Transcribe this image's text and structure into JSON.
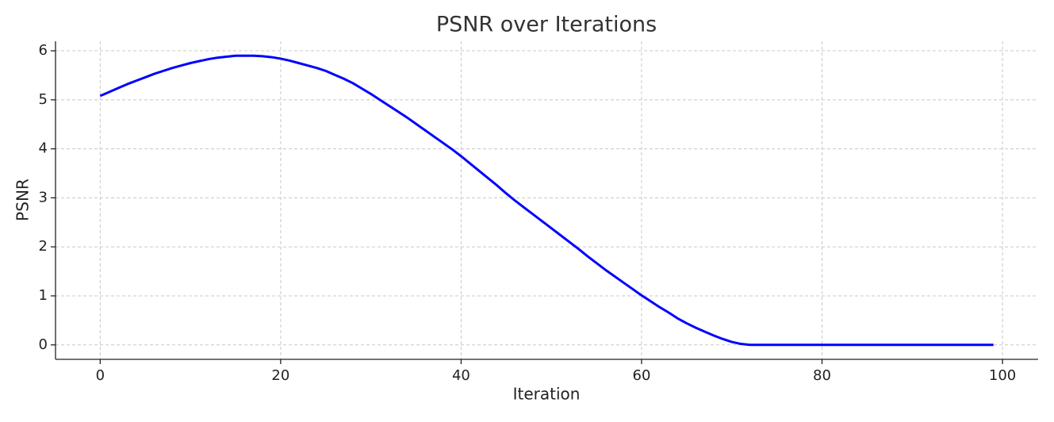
{
  "chart_data": {
    "type": "line",
    "title": "PSNR over Iterations",
    "x_label": "Iteration",
    "y_label": "PSNR",
    "x": [
      0,
      1,
      2,
      3,
      4,
      5,
      6,
      7,
      8,
      9,
      10,
      11,
      12,
      13,
      14,
      15,
      16,
      17,
      18,
      19,
      20,
      21,
      22,
      23,
      24,
      25,
      26,
      27,
      28,
      29,
      30,
      31,
      32,
      33,
      34,
      35,
      36,
      37,
      38,
      39,
      40,
      41,
      42,
      43,
      44,
      45,
      46,
      47,
      48,
      49,
      50,
      51,
      52,
      53,
      54,
      55,
      56,
      57,
      58,
      59,
      60,
      61,
      62,
      63,
      64,
      65,
      66,
      67,
      68,
      69,
      70,
      71,
      72,
      73,
      74,
      75,
      76,
      77,
      78,
      79,
      80,
      81,
      82,
      83,
      84,
      85,
      86,
      87,
      88,
      89,
      90,
      91,
      92,
      93,
      94,
      95,
      96,
      97,
      98,
      99
    ],
    "series": [
      {
        "name": "PSNR",
        "color": "#0000ff",
        "values": [
          5.08,
          5.16,
          5.24,
          5.32,
          5.39,
          5.46,
          5.53,
          5.59,
          5.65,
          5.7,
          5.75,
          5.79,
          5.83,
          5.86,
          5.88,
          5.9,
          5.9,
          5.9,
          5.89,
          5.87,
          5.84,
          5.8,
          5.75,
          5.7,
          5.65,
          5.59,
          5.51,
          5.43,
          5.34,
          5.23,
          5.12,
          5.0,
          4.88,
          4.76,
          4.64,
          4.51,
          4.38,
          4.25,
          4.12,
          3.99,
          3.85,
          3.7,
          3.55,
          3.4,
          3.25,
          3.09,
          2.94,
          2.8,
          2.66,
          2.52,
          2.38,
          2.24,
          2.1,
          1.96,
          1.81,
          1.67,
          1.53,
          1.4,
          1.27,
          1.14,
          1.01,
          0.89,
          0.77,
          0.66,
          0.54,
          0.44,
          0.35,
          0.27,
          0.19,
          0.12,
          0.06,
          0.02,
          0,
          0,
          0,
          0,
          0,
          0,
          0,
          0,
          0,
          0,
          0,
          0,
          0,
          0,
          0,
          0,
          0,
          0,
          0,
          0,
          0,
          0,
          0,
          0,
          0,
          0,
          0,
          0
        ]
      }
    ],
    "xlim": [
      -4.95,
      103.95
    ],
    "ylim": [
      -0.295,
      6.195
    ],
    "xticks": [
      0,
      20,
      40,
      60,
      80,
      100
    ],
    "yticks": [
      0,
      1,
      2,
      3,
      4,
      5,
      6
    ],
    "grid": true
  }
}
